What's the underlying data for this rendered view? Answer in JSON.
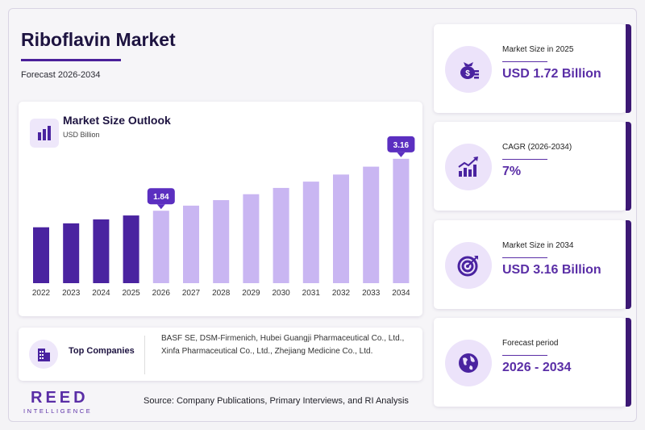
{
  "header": {
    "title": "Riboflavin Market",
    "subtitle": "Forecast 2026-2034"
  },
  "chart": {
    "title": "Market Size Outlook",
    "unit": "USD Billion"
  },
  "chart_data": {
    "type": "bar",
    "title": "Market Size Outlook",
    "ylabel": "USD Billion",
    "categories": [
      "2022",
      "2023",
      "2024",
      "2025",
      "2026",
      "2027",
      "2028",
      "2029",
      "2030",
      "2031",
      "2032",
      "2033",
      "2034"
    ],
    "values": [
      1.42,
      1.52,
      1.62,
      1.72,
      1.84,
      1.97,
      2.11,
      2.26,
      2.42,
      2.58,
      2.76,
      2.96,
      3.16
    ],
    "ylim": [
      0,
      3.3
    ],
    "grid": false,
    "colors": {
      "historic": "#4a23a0",
      "forecast": "#c9b6f2",
      "callout": "#5b2fc0"
    },
    "annotations": [
      {
        "category": "2026",
        "label": "1.84"
      },
      {
        "category": "2034",
        "label": "3.16"
      }
    ]
  },
  "companies": {
    "label": "Top Companies",
    "text": "BASF SE, DSM-Firmenich, Hubei Guangji Pharmaceutical Co., Ltd., Xinfa Pharmaceutical Co., Ltd., Zhejiang Medicine Co., Ltd."
  },
  "logo": {
    "main": "REED",
    "sub": "INTELLIGENCE"
  },
  "source": "Source: Company Publications, Primary Interviews, and RI Analysis",
  "kpis": [
    {
      "label": "Market Size in 2025",
      "value": "USD 1.72 Billion",
      "icon": "money-bag-icon"
    },
    {
      "label": "CAGR (2026-2034)",
      "value": "7%",
      "icon": "growth-chart-icon"
    },
    {
      "label": "Market Size in 2034",
      "value": "USD 3.16 Billion",
      "icon": "target-icon"
    },
    {
      "label": "Forecast period",
      "value": "2026 - 2034",
      "icon": "globe-icon"
    }
  ]
}
